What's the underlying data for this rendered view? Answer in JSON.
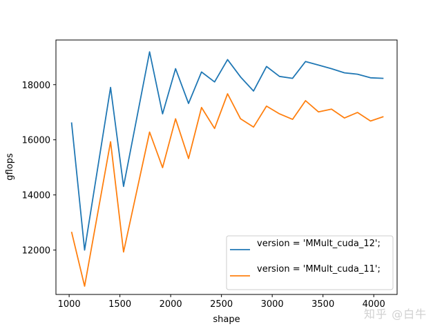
{
  "chart_data": {
    "type": "line",
    "title": "",
    "xlabel": "shape",
    "ylabel": "gflops",
    "xlim": [
      870,
      4230
    ],
    "ylim": [
      10390,
      19620
    ],
    "xticks": [
      1000,
      1500,
      2000,
      2500,
      3000,
      3500,
      4000
    ],
    "yticks": [
      12000,
      14000,
      16000,
      18000
    ],
    "grid": false,
    "legend_position": "lower right",
    "x": [
      1024,
      1152,
      1408,
      1536,
      1792,
      1920,
      2048,
      2176,
      2304,
      2432,
      2560,
      2688,
      2816,
      2944,
      3072,
      3200,
      3328,
      3456,
      3584,
      3712,
      3840,
      3968,
      4096
    ],
    "series": [
      {
        "name": "version = 'MMult_cuda_12';",
        "color": "#1f77b4",
        "values": [
          16630,
          12000,
          17900,
          14310,
          19190,
          16940,
          18580,
          17320,
          18460,
          18100,
          18910,
          18280,
          17770,
          18660,
          18300,
          18230,
          18840,
          18710,
          18580,
          18430,
          18380,
          18250,
          18230
        ]
      },
      {
        "name": "version = 'MMult_cuda_11';",
        "color": "#ff7f0e",
        "values": [
          12660,
          10690,
          15930,
          11930,
          16280,
          14990,
          16760,
          15320,
          17170,
          16410,
          17670,
          16760,
          16460,
          17220,
          16940,
          16740,
          17420,
          17010,
          17110,
          16790,
          16990,
          16680,
          16840
        ]
      }
    ]
  },
  "watermark": "知乎 @白牛"
}
